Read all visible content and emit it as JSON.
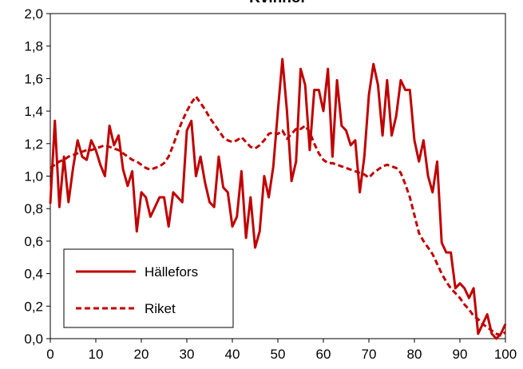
{
  "chart_data": {
    "type": "line",
    "title": "Kvinnor",
    "x": [
      0,
      1,
      2,
      3,
      4,
      5,
      6,
      7,
      8,
      9,
      10,
      11,
      12,
      13,
      14,
      15,
      16,
      17,
      18,
      19,
      20,
      21,
      22,
      23,
      24,
      25,
      26,
      27,
      28,
      29,
      30,
      31,
      32,
      33,
      34,
      35,
      36,
      37,
      38,
      39,
      40,
      41,
      42,
      43,
      44,
      45,
      46,
      47,
      48,
      49,
      50,
      51,
      52,
      53,
      54,
      55,
      56,
      57,
      58,
      59,
      60,
      61,
      62,
      63,
      64,
      65,
      66,
      67,
      68,
      69,
      70,
      71,
      72,
      73,
      74,
      75,
      76,
      77,
      78,
      79,
      80,
      81,
      82,
      83,
      84,
      85,
      86,
      87,
      88,
      89,
      90,
      91,
      92,
      93,
      94,
      95,
      96,
      97,
      98,
      99,
      100
    ],
    "series": [
      {
        "name": "Hällefors",
        "color": "#c00000",
        "dash": "solid",
        "values": [
          0.83,
          1.34,
          0.81,
          1.12,
          0.84,
          1.05,
          1.22,
          1.12,
          1.1,
          1.22,
          1.16,
          1.07,
          1.0,
          1.31,
          1.19,
          1.25,
          1.04,
          0.94,
          1.03,
          0.66,
          0.9,
          0.87,
          0.75,
          0.81,
          0.87,
          0.87,
          0.69,
          0.9,
          0.87,
          0.84,
          1.28,
          1.34,
          1.0,
          1.12,
          0.96,
          0.84,
          0.81,
          1.12,
          0.93,
          0.9,
          0.69,
          0.75,
          1.03,
          0.62,
          0.87,
          0.56,
          0.66,
          1.0,
          0.87,
          1.06,
          1.4,
          1.72,
          1.4,
          0.97,
          1.09,
          1.66,
          1.56,
          1.16,
          1.53,
          1.53,
          1.4,
          1.66,
          1.12,
          1.59,
          1.31,
          1.28,
          1.19,
          1.22,
          0.9,
          1.12,
          1.5,
          1.69,
          1.56,
          1.25,
          1.59,
          1.25,
          1.37,
          1.59,
          1.53,
          1.53,
          1.22,
          1.09,
          1.22,
          1.0,
          0.9,
          1.09,
          0.59,
          0.53,
          0.53,
          0.31,
          0.34,
          0.31,
          0.25,
          0.31,
          0.03,
          0.09,
          0.15,
          0.03,
          0.0,
          0.03,
          0.09
        ]
      },
      {
        "name": "Riket",
        "color": "#c00000",
        "dash": "dashed",
        "values": [
          1.05,
          1.07,
          1.09,
          1.1,
          1.12,
          1.13,
          1.14,
          1.15,
          1.16,
          1.16,
          1.17,
          1.18,
          1.19,
          1.18,
          1.17,
          1.16,
          1.14,
          1.12,
          1.1,
          1.09,
          1.07,
          1.05,
          1.04,
          1.05,
          1.06,
          1.08,
          1.12,
          1.19,
          1.27,
          1.34,
          1.4,
          1.45,
          1.49,
          1.45,
          1.41,
          1.36,
          1.32,
          1.28,
          1.24,
          1.22,
          1.21,
          1.22,
          1.24,
          1.21,
          1.18,
          1.17,
          1.19,
          1.22,
          1.26,
          1.27,
          1.26,
          1.28,
          1.23,
          1.26,
          1.29,
          1.29,
          1.31,
          1.27,
          1.2,
          1.14,
          1.1,
          1.08,
          1.08,
          1.07,
          1.06,
          1.05,
          1.04,
          1.03,
          1.02,
          1.01,
          0.99,
          1.02,
          1.04,
          1.06,
          1.07,
          1.06,
          1.05,
          1.02,
          0.95,
          0.87,
          0.76,
          0.65,
          0.6,
          0.56,
          0.52,
          0.46,
          0.4,
          0.35,
          0.31,
          0.28,
          0.25,
          0.21,
          0.18,
          0.14,
          0.12,
          0.09,
          0.07,
          0.05,
          0.03,
          0.02,
          0.04
        ]
      }
    ],
    "xlim": [
      0,
      100
    ],
    "xticks": [
      0,
      10,
      20,
      30,
      40,
      50,
      60,
      70,
      80,
      90,
      100
    ],
    "ylim": [
      0,
      2
    ],
    "yticks": [
      {
        "value": 0,
        "label": "0,0"
      },
      {
        "value": 0.2,
        "label": "0,2"
      },
      {
        "value": 0.4,
        "label": "0,4"
      },
      {
        "value": 0.6,
        "label": "0,6"
      },
      {
        "value": 0.8,
        "label": "0,8"
      },
      {
        "value": 1.0,
        "label": "1,0"
      },
      {
        "value": 1.2,
        "label": "1,2"
      },
      {
        "value": 1.4,
        "label": "1,4"
      },
      {
        "value": 1.6,
        "label": "1,6"
      },
      {
        "value": 1.8,
        "label": "1,8"
      },
      {
        "value": 2.0,
        "label": "2,0"
      }
    ],
    "grid": false,
    "legend": "lower left"
  }
}
